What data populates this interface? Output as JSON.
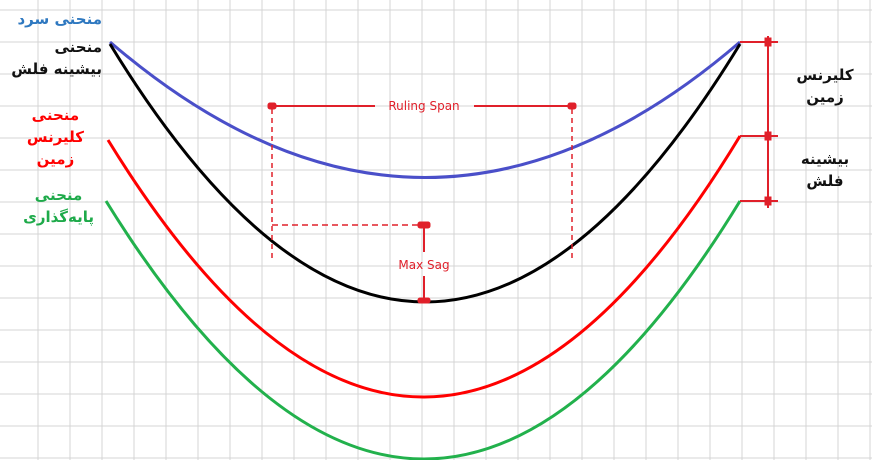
{
  "legend": {
    "cold_curve": "منحنی سرد",
    "max_sag_curve": [
      "منحنی",
      "بیشینه فلش"
    ],
    "ground_clearance_curve": [
      "منحنی",
      "کلیرنس",
      "زمین"
    ],
    "foundation_curve": [
      "منحنی",
      "پایه‌گذاری"
    ]
  },
  "right_labels": {
    "ground_clearance": [
      "کلیرنس",
      "زمین"
    ],
    "max_sag": [
      "بیشینه",
      "فلش"
    ]
  },
  "annotations": {
    "ruling_span": "Ruling Span",
    "max_sag": "Max Sag"
  },
  "colors": {
    "blue_curve": "#4a4fc9",
    "black_curve": "#000000",
    "red_curve": "#ff0000",
    "green_curve": "#22b14c",
    "annotation": "#e0202a",
    "grid": "#d4d4d4",
    "label_blue": "#2e78c0",
    "label_green": "#1eaa4a"
  }
}
